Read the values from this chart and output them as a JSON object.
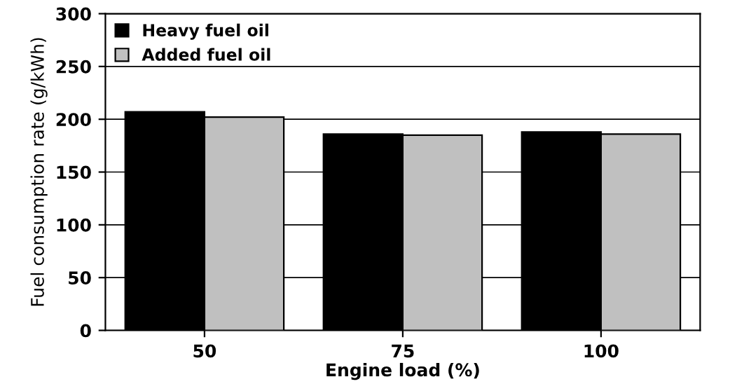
{
  "chart_data": {
    "type": "bar",
    "xlabel": "Engine load (%)",
    "ylabel": "Fuel consumption rate (g/kWh)",
    "categories": [
      "50",
      "75",
      "100"
    ],
    "series": [
      {
        "name": "Heavy fuel oil",
        "color": "#000000",
        "values": [
          207,
          186,
          188
        ]
      },
      {
        "name": "Added fuel oil",
        "color": "#c0c0c0",
        "values": [
          202,
          185,
          186
        ]
      }
    ],
    "ylim": [
      0,
      300
    ],
    "yticks": [
      0,
      50,
      100,
      150,
      200,
      250,
      300
    ],
    "grid": "y",
    "legend": "top left"
  }
}
